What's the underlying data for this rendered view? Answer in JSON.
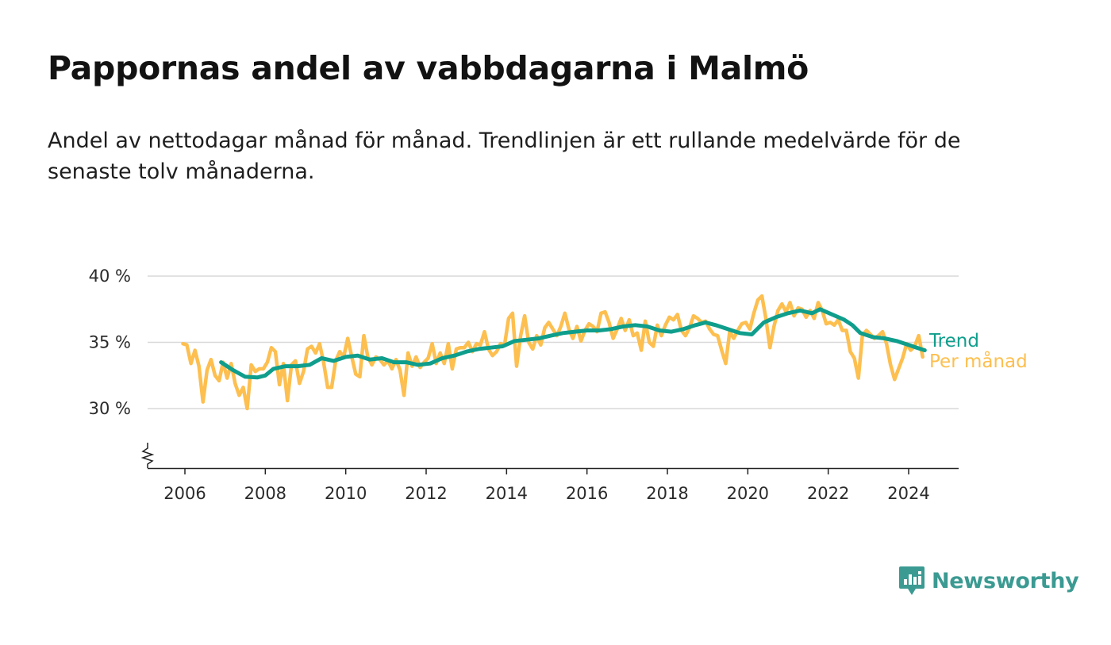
{
  "header": {
    "title": "Pappornas andel av vabbdagarna i Malmö",
    "subtitle": "Andel av nettodagar månad för månad. Trendlinjen är ett rullande medelvärde för de senaste tolv månaderna."
  },
  "brand": {
    "name": "Newsworthy",
    "icon": "newsworthy-logo-icon",
    "color": "#3b9a92"
  },
  "chart_data": {
    "type": "line",
    "title": "",
    "xlabel": "",
    "ylabel": "",
    "xlim": [
      2005.5,
      2025.3
    ],
    "ylim": [
      25.5,
      40
    ],
    "y_ticks": [
      30,
      35,
      40
    ],
    "y_tick_labels": [
      "30 %",
      "35 %",
      "40 %"
    ],
    "x_ticks": [
      2006,
      2008,
      2010,
      2012,
      2014,
      2016,
      2018,
      2020,
      2022,
      2024
    ],
    "x_tick_labels": [
      "2006",
      "2008",
      "2010",
      "2012",
      "2014",
      "2016",
      "2018",
      "2020",
      "2022",
      "2024"
    ],
    "grid": "horizontal",
    "axis_break": true,
    "legend": "right-end-labels",
    "series": [
      {
        "name": "Trend",
        "color": "#0f9e8c",
        "points": [
          [
            2006.9,
            33.5
          ],
          [
            2007.2,
            32.9
          ],
          [
            2007.5,
            32.4
          ],
          [
            2007.8,
            32.35
          ],
          [
            2008.0,
            32.5
          ],
          [
            2008.2,
            33.0
          ],
          [
            2008.5,
            33.2
          ],
          [
            2008.8,
            33.2
          ],
          [
            2009.1,
            33.3
          ],
          [
            2009.4,
            33.8
          ],
          [
            2009.7,
            33.6
          ],
          [
            2010.0,
            33.9
          ],
          [
            2010.3,
            34.0
          ],
          [
            2010.6,
            33.7
          ],
          [
            2010.9,
            33.8
          ],
          [
            2011.2,
            33.5
          ],
          [
            2011.5,
            33.5
          ],
          [
            2011.8,
            33.3
          ],
          [
            2012.1,
            33.4
          ],
          [
            2012.4,
            33.8
          ],
          [
            2012.7,
            34.0
          ],
          [
            2013.0,
            34.3
          ],
          [
            2013.3,
            34.5
          ],
          [
            2013.6,
            34.6
          ],
          [
            2013.9,
            34.7
          ],
          [
            2014.2,
            35.1
          ],
          [
            2014.5,
            35.2
          ],
          [
            2014.8,
            35.3
          ],
          [
            2015.1,
            35.5
          ],
          [
            2015.4,
            35.7
          ],
          [
            2015.7,
            35.8
          ],
          [
            2016.0,
            35.9
          ],
          [
            2016.3,
            35.9
          ],
          [
            2016.6,
            36.0
          ],
          [
            2016.9,
            36.2
          ],
          [
            2017.2,
            36.3
          ],
          [
            2017.5,
            36.2
          ],
          [
            2017.8,
            35.9
          ],
          [
            2018.1,
            35.8
          ],
          [
            2018.4,
            36.0
          ],
          [
            2018.7,
            36.3
          ],
          [
            2018.95,
            36.5
          ],
          [
            2019.2,
            36.3
          ],
          [
            2019.5,
            36.0
          ],
          [
            2019.8,
            35.7
          ],
          [
            2020.1,
            35.6
          ],
          [
            2020.4,
            36.5
          ],
          [
            2020.7,
            36.9
          ],
          [
            2021.0,
            37.2
          ],
          [
            2021.3,
            37.4
          ],
          [
            2021.6,
            37.2
          ],
          [
            2021.8,
            37.5
          ],
          [
            2022.1,
            37.1
          ],
          [
            2022.4,
            36.7
          ],
          [
            2022.6,
            36.3
          ],
          [
            2022.8,
            35.7
          ],
          [
            2023.1,
            35.4
          ],
          [
            2023.4,
            35.3
          ],
          [
            2023.7,
            35.1
          ],
          [
            2024.0,
            34.8
          ],
          [
            2024.2,
            34.6
          ],
          [
            2024.4,
            34.4
          ]
        ]
      },
      {
        "name": "Per månad",
        "color": "#fdbf4f",
        "points": [
          [
            2005.95,
            34.9
          ],
          [
            2006.05,
            34.8
          ],
          [
            2006.15,
            33.4
          ],
          [
            2006.25,
            34.4
          ],
          [
            2006.35,
            33.2
          ],
          [
            2006.45,
            30.5
          ],
          [
            2006.55,
            32.9
          ],
          [
            2006.65,
            33.7
          ],
          [
            2006.75,
            32.5
          ],
          [
            2006.85,
            32.1
          ],
          [
            2006.95,
            33.5
          ],
          [
            2007.05,
            32.3
          ],
          [
            2007.15,
            33.4
          ],
          [
            2007.25,
            31.9
          ],
          [
            2007.35,
            31.0
          ],
          [
            2007.45,
            31.6
          ],
          [
            2007.55,
            30.0
          ],
          [
            2007.65,
            33.3
          ],
          [
            2007.75,
            32.8
          ],
          [
            2007.85,
            33.0
          ],
          [
            2007.95,
            33.0
          ],
          [
            2008.05,
            33.5
          ],
          [
            2008.15,
            34.6
          ],
          [
            2008.25,
            34.3
          ],
          [
            2008.35,
            31.8
          ],
          [
            2008.45,
            33.4
          ],
          [
            2008.55,
            30.6
          ],
          [
            2008.65,
            33.3
          ],
          [
            2008.75,
            33.6
          ],
          [
            2008.85,
            31.9
          ],
          [
            2008.95,
            32.8
          ],
          [
            2009.05,
            34.5
          ],
          [
            2009.15,
            34.7
          ],
          [
            2009.25,
            34.2
          ],
          [
            2009.35,
            34.9
          ],
          [
            2009.45,
            33.5
          ],
          [
            2009.55,
            31.6
          ],
          [
            2009.65,
            31.6
          ],
          [
            2009.75,
            33.6
          ],
          [
            2009.85,
            34.3
          ],
          [
            2009.95,
            33.9
          ],
          [
            2010.05,
            35.3
          ],
          [
            2010.15,
            33.9
          ],
          [
            2010.25,
            32.6
          ],
          [
            2010.35,
            32.4
          ],
          [
            2010.45,
            35.5
          ],
          [
            2010.55,
            33.9
          ],
          [
            2010.65,
            33.3
          ],
          [
            2010.75,
            33.9
          ],
          [
            2010.85,
            33.7
          ],
          [
            2010.95,
            33.3
          ],
          [
            2011.05,
            33.6
          ],
          [
            2011.15,
            33.0
          ],
          [
            2011.25,
            33.7
          ],
          [
            2011.35,
            32.9
          ],
          [
            2011.45,
            31.0
          ],
          [
            2011.55,
            34.2
          ],
          [
            2011.65,
            33.2
          ],
          [
            2011.75,
            33.9
          ],
          [
            2011.85,
            33.1
          ],
          [
            2011.95,
            33.5
          ],
          [
            2012.05,
            33.8
          ],
          [
            2012.15,
            34.9
          ],
          [
            2012.25,
            33.4
          ],
          [
            2012.35,
            34.2
          ],
          [
            2012.45,
            33.4
          ],
          [
            2012.55,
            34.9
          ],
          [
            2012.65,
            33.0
          ],
          [
            2012.75,
            34.5
          ],
          [
            2012.85,
            34.6
          ],
          [
            2012.95,
            34.6
          ],
          [
            2013.05,
            35.0
          ],
          [
            2013.15,
            34.3
          ],
          [
            2013.25,
            34.9
          ],
          [
            2013.35,
            34.8
          ],
          [
            2013.45,
            35.8
          ],
          [
            2013.55,
            34.5
          ],
          [
            2013.65,
            34.0
          ],
          [
            2013.75,
            34.3
          ],
          [
            2013.85,
            34.9
          ],
          [
            2013.95,
            34.8
          ],
          [
            2014.05,
            36.8
          ],
          [
            2014.15,
            37.2
          ],
          [
            2014.25,
            33.2
          ],
          [
            2014.35,
            35.5
          ],
          [
            2014.45,
            37.0
          ],
          [
            2014.55,
            35.0
          ],
          [
            2014.65,
            34.5
          ],
          [
            2014.75,
            35.5
          ],
          [
            2014.85,
            34.8
          ],
          [
            2014.95,
            36.1
          ],
          [
            2015.05,
            36.5
          ],
          [
            2015.15,
            36.0
          ],
          [
            2015.25,
            35.5
          ],
          [
            2015.35,
            36.2
          ],
          [
            2015.45,
            37.2
          ],
          [
            2015.55,
            36.0
          ],
          [
            2015.65,
            35.3
          ],
          [
            2015.75,
            36.2
          ],
          [
            2015.85,
            35.1
          ],
          [
            2015.95,
            35.9
          ],
          [
            2016.05,
            36.4
          ],
          [
            2016.15,
            36.2
          ],
          [
            2016.25,
            35.8
          ],
          [
            2016.35,
            37.2
          ],
          [
            2016.45,
            37.3
          ],
          [
            2016.55,
            36.5
          ],
          [
            2016.65,
            35.3
          ],
          [
            2016.75,
            36.0
          ],
          [
            2016.85,
            36.8
          ],
          [
            2016.95,
            35.9
          ],
          [
            2017.05,
            36.7
          ],
          [
            2017.15,
            35.5
          ],
          [
            2017.25,
            35.7
          ],
          [
            2017.35,
            34.4
          ],
          [
            2017.45,
            36.6
          ],
          [
            2017.55,
            35.0
          ],
          [
            2017.65,
            34.7
          ],
          [
            2017.75,
            36.3
          ],
          [
            2017.85,
            35.5
          ],
          [
            2017.95,
            36.3
          ],
          [
            2018.05,
            36.9
          ],
          [
            2018.15,
            36.7
          ],
          [
            2018.25,
            37.1
          ],
          [
            2018.35,
            35.9
          ],
          [
            2018.45,
            35.5
          ],
          [
            2018.55,
            36.1
          ],
          [
            2018.65,
            37.0
          ],
          [
            2018.75,
            36.8
          ],
          [
            2018.85,
            36.5
          ],
          [
            2018.95,
            36.6
          ],
          [
            2019.05,
            36.0
          ],
          [
            2019.15,
            35.6
          ],
          [
            2019.25,
            35.5
          ],
          [
            2019.35,
            34.4
          ],
          [
            2019.45,
            33.4
          ],
          [
            2019.55,
            35.8
          ],
          [
            2019.65,
            35.3
          ],
          [
            2019.75,
            35.9
          ],
          [
            2019.85,
            36.4
          ],
          [
            2019.95,
            36.5
          ],
          [
            2020.05,
            36.0
          ],
          [
            2020.15,
            37.2
          ],
          [
            2020.25,
            38.2
          ],
          [
            2020.35,
            38.5
          ],
          [
            2020.45,
            36.8
          ],
          [
            2020.55,
            34.6
          ],
          [
            2020.65,
            36.2
          ],
          [
            2020.75,
            37.4
          ],
          [
            2020.85,
            37.9
          ],
          [
            2020.95,
            37.3
          ],
          [
            2021.05,
            38.0
          ],
          [
            2021.15,
            37.0
          ],
          [
            2021.25,
            37.6
          ],
          [
            2021.35,
            37.5
          ],
          [
            2021.45,
            36.9
          ],
          [
            2021.55,
            37.4
          ],
          [
            2021.65,
            36.8
          ],
          [
            2021.75,
            38.0
          ],
          [
            2021.85,
            37.4
          ],
          [
            2021.95,
            36.4
          ],
          [
            2022.05,
            36.5
          ],
          [
            2022.15,
            36.3
          ],
          [
            2022.25,
            36.7
          ],
          [
            2022.35,
            35.9
          ],
          [
            2022.45,
            35.9
          ],
          [
            2022.55,
            34.3
          ],
          [
            2022.65,
            33.8
          ],
          [
            2022.75,
            32.3
          ],
          [
            2022.85,
            35.5
          ],
          [
            2022.95,
            35.9
          ],
          [
            2023.05,
            35.6
          ],
          [
            2023.15,
            35.3
          ],
          [
            2023.25,
            35.5
          ],
          [
            2023.35,
            35.8
          ],
          [
            2023.45,
            34.9
          ],
          [
            2023.55,
            33.3
          ],
          [
            2023.65,
            32.2
          ],
          [
            2023.75,
            33.0
          ],
          [
            2023.85,
            33.8
          ],
          [
            2023.95,
            34.9
          ],
          [
            2024.05,
            34.4
          ],
          [
            2024.15,
            34.7
          ],
          [
            2024.25,
            35.5
          ],
          [
            2024.35,
            33.9
          ]
        ]
      }
    ]
  }
}
